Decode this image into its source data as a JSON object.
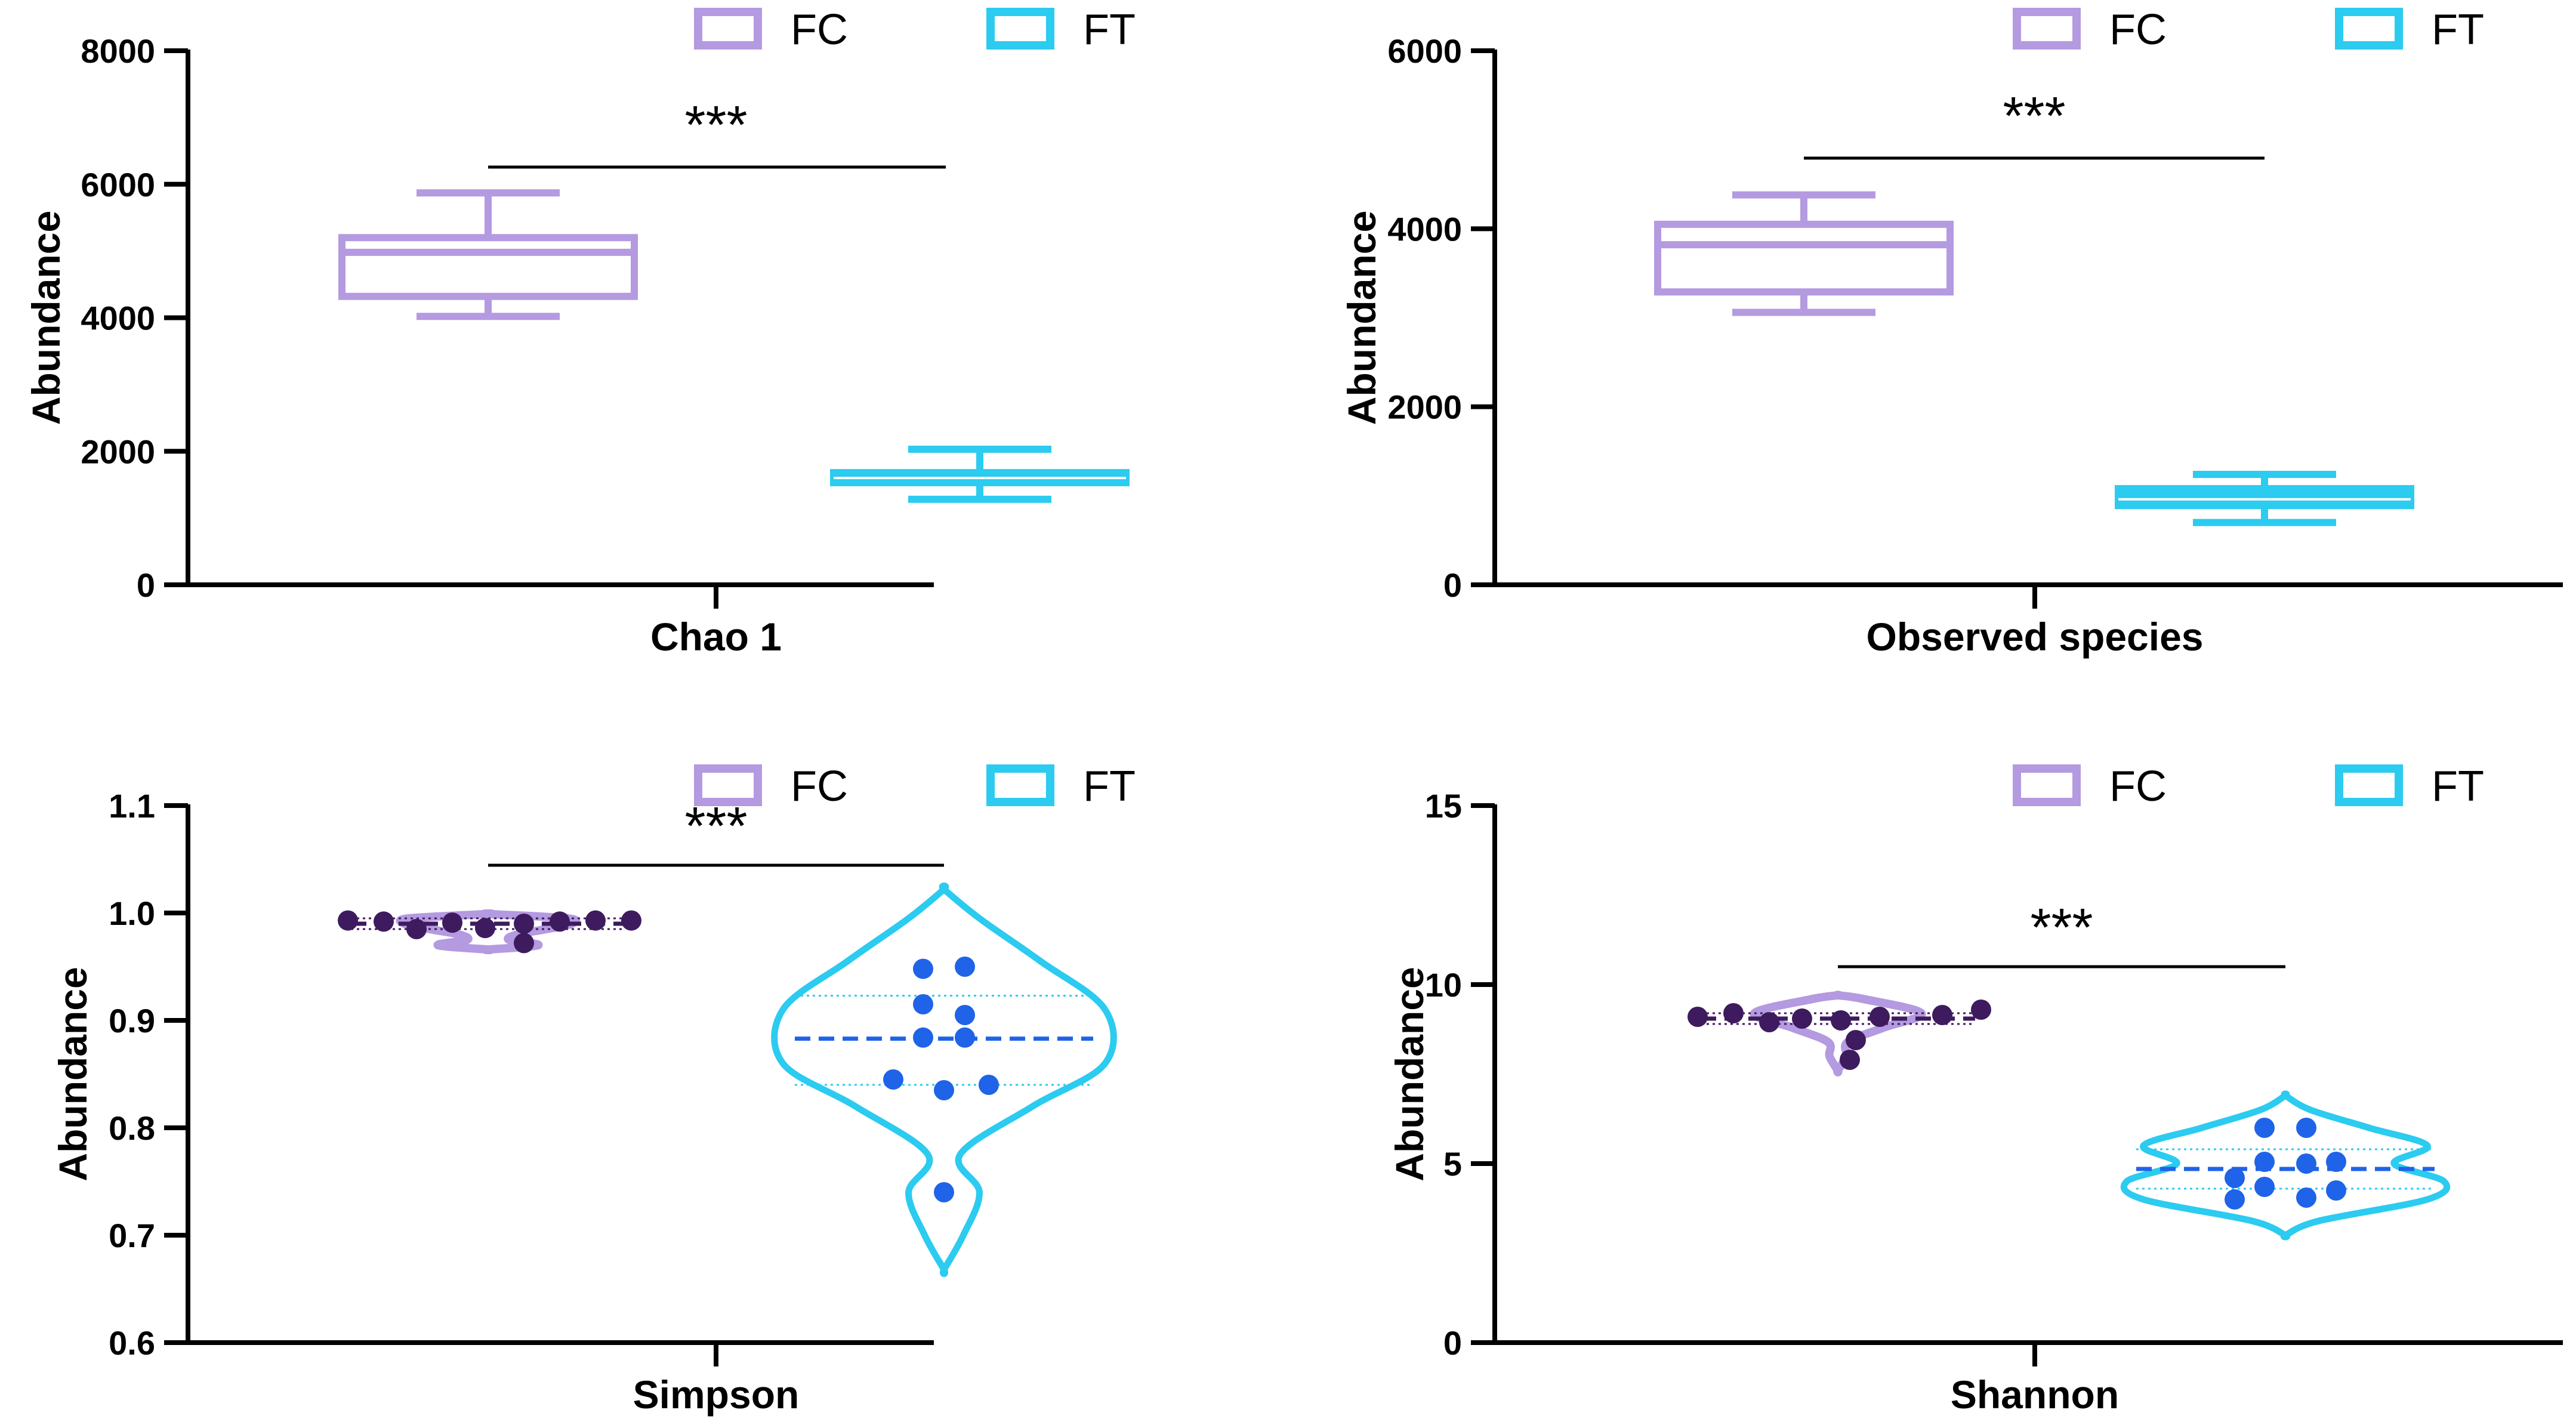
{
  "colors": {
    "fc": "#b49ae0",
    "ft": "#2ccbf0",
    "fc_point": "#3e1b5e",
    "ft_point": "#1f63e8",
    "axis": "#000000"
  },
  "legend": [
    {
      "label": "FC",
      "color_key": "fc"
    },
    {
      "label": "FT",
      "color_key": "ft"
    }
  ],
  "chart_data": [
    {
      "type": "box",
      "title": "",
      "xlabel": "Chao 1",
      "ylabel": "Abundance",
      "ylim": [
        0,
        8000
      ],
      "yticks": [
        "0",
        "2000",
        "4000",
        "6000",
        "8000"
      ],
      "significance": "***",
      "series": [
        {
          "name": "FC",
          "min": 4020,
          "q1": 4320,
          "median": 4980,
          "q3": 5200,
          "max": 5870
        },
        {
          "name": "FT",
          "min": 1280,
          "q1": 1530,
          "median": 1600,
          "q3": 1680,
          "max": 2030
        }
      ]
    },
    {
      "type": "box",
      "title": "",
      "xlabel": "Observed species",
      "ylabel": "Abundance",
      "ylim": [
        0,
        6000
      ],
      "yticks": [
        "0",
        "2000",
        "4000",
        "6000"
      ],
      "significance": "***",
      "series": [
        {
          "name": "FC",
          "min": 3060,
          "q1": 3290,
          "median": 3820,
          "q3": 4050,
          "max": 4380
        },
        {
          "name": "FT",
          "min": 700,
          "q1": 890,
          "median": 960,
          "q3": 1080,
          "max": 1240
        }
      ]
    },
    {
      "type": "violin",
      "title": "",
      "xlabel": "Simpson",
      "ylabel": "Abundance",
      "ylim": [
        0.6,
        1.1
      ],
      "yticks": [
        "0.6",
        "0.7",
        "0.8",
        "0.9",
        "1.0",
        "1.1"
      ],
      "significance": "***",
      "series": [
        {
          "name": "FC",
          "median": 0.99,
          "q1": 0.985,
          "q3": 0.995,
          "points": [
            0.993,
            0.992,
            0.985,
            0.991,
            0.986,
            0.99,
            0.992,
            0.972,
            0.993,
            0.993
          ],
          "density": [
            [
              0.966,
              0.0
            ],
            [
              0.97,
              0.6
            ],
            [
              0.975,
              0.25
            ],
            [
              0.98,
              0.35
            ],
            [
              0.985,
              0.7
            ],
            [
              0.99,
              1.0
            ],
            [
              0.995,
              0.95
            ],
            [
              0.999,
              0.0
            ]
          ]
        },
        {
          "name": "FT",
          "median": 0.883,
          "q1": 0.84,
          "q3": 0.923,
          "points": [
            0.948,
            0.95,
            0.915,
            0.905,
            0.884,
            0.884,
            0.845,
            0.835,
            0.84,
            0.74
          ],
          "density": [
            [
              0.668,
              0.0
            ],
            [
              0.7,
              0.12
            ],
            [
              0.74,
              0.22
            ],
            [
              0.775,
              0.1
            ],
            [
              0.82,
              0.55
            ],
            [
              0.86,
              1.0
            ],
            [
              0.91,
              1.0
            ],
            [
              0.955,
              0.6
            ],
            [
              0.995,
              0.22
            ],
            [
              1.022,
              0.0
            ]
          ]
        }
      ]
    },
    {
      "type": "violin",
      "title": "",
      "xlabel": "Shannon",
      "ylabel": "Abundance",
      "ylim": [
        0,
        15
      ],
      "yticks": [
        "0",
        "5",
        "10",
        "15"
      ],
      "significance": "***",
      "series": [
        {
          "name": "FC",
          "median": 9.05,
          "q1": 8.9,
          "q3": 9.2,
          "points": [
            9.1,
            9.2,
            8.95,
            9.05,
            9.0,
            8.45,
            7.9,
            9.1,
            9.15,
            9.3
          ],
          "density": [
            [
              7.6,
              0.0
            ],
            [
              8.0,
              0.1
            ],
            [
              8.4,
              0.12
            ],
            [
              8.8,
              0.55
            ],
            [
              9.2,
              1.0
            ],
            [
              9.6,
              0.3
            ],
            [
              9.7,
              0.0
            ]
          ]
        },
        {
          "name": "FT",
          "median": 4.85,
          "q1": 4.3,
          "q3": 5.4,
          "points": [
            6.0,
            6.0,
            5.05,
            5.0,
            5.05,
            4.6,
            4.35,
            4.25,
            4.0,
            4.05
          ],
          "density": [
            [
              3.0,
              0.0
            ],
            [
              3.4,
              0.2
            ],
            [
              4.0,
              0.85
            ],
            [
              4.5,
              0.95
            ],
            [
              5.0,
              0.65
            ],
            [
              5.5,
              0.85
            ],
            [
              6.0,
              0.5
            ],
            [
              6.5,
              0.15
            ],
            [
              6.9,
              0.0
            ]
          ]
        }
      ]
    }
  ]
}
